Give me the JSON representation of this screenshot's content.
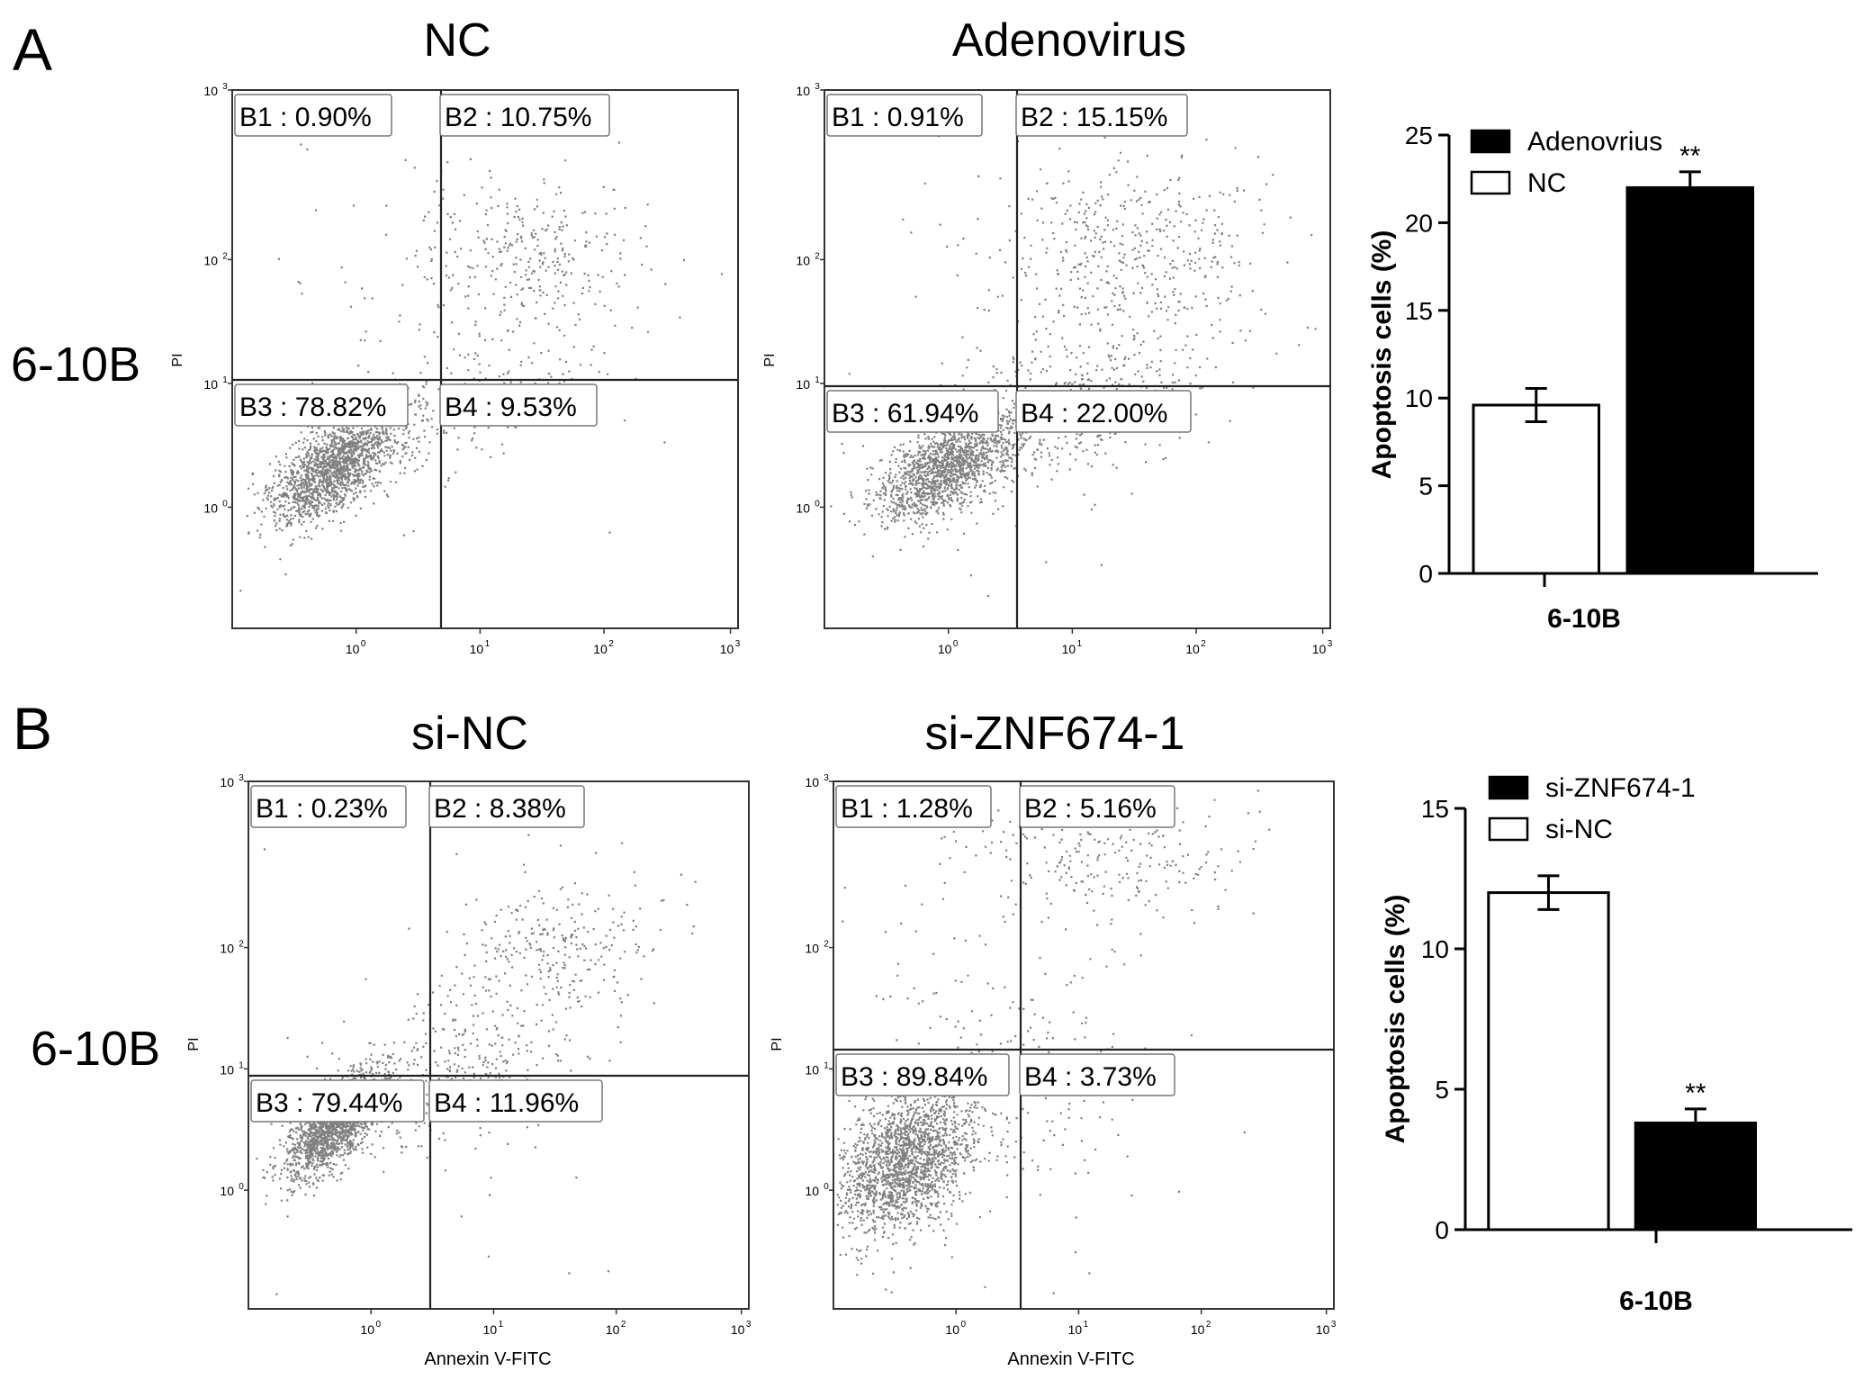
{
  "panels": [
    {
      "label": "A",
      "row_label": "6-10B",
      "flow_plots": [
        {
          "title": "NC",
          "ylabel": "PI",
          "xlabel": "",
          "quadrants": {
            "B1": "B1 : 0.90%",
            "B2": "B2 : 10.75%",
            "B3": "B3 : 78.82%",
            "B4": "B4 : 9.53%"
          }
        },
        {
          "title": "Adenovirus",
          "ylabel": "PI",
          "xlabel": "",
          "quadrants": {
            "B1": "B1 : 0.91%",
            "B2": "B2 : 15.15%",
            "B3": "B3 : 61.94%",
            "B4": "B4 : 22.00%"
          }
        }
      ]
    },
    {
      "label": "B",
      "row_label": "6-10B",
      "flow_plots": [
        {
          "title": "si-NC",
          "ylabel": "PI",
          "xlabel": "Annexin V-FITC",
          "quadrants": {
            "B1": "B1 : 0.23%",
            "B2": "B2 : 8.38%",
            "B3": "B3 : 79.44%",
            "B4": "B4 : 11.96%"
          }
        },
        {
          "title": "si-ZNF674-1",
          "ylabel": "PI",
          "xlabel": "Annexin V-FITC",
          "quadrants": {
            "B1": "B1 : 1.28%",
            "B2": "B2 : 5.16%",
            "B3": "B3 : 89.84%",
            "B4": "B4 : 3.73%"
          }
        }
      ]
    }
  ],
  "flow_axis": {
    "ticks": [
      {
        "base": "10",
        "exp": "0"
      },
      {
        "base": "10",
        "exp": "1"
      },
      {
        "base": "10",
        "exp": "2"
      },
      {
        "base": "10",
        "exp": "3"
      }
    ]
  },
  "colors": {
    "dots": "#555555",
    "bar_black": "#000000",
    "bar_white": "#ffffff"
  },
  "chart_data": [
    {
      "type": "bar",
      "panel": "A",
      "categories": [
        "6-10B"
      ],
      "series": [
        {
          "name": "NC",
          "values": [
            9.6
          ],
          "error": [
            0.95
          ],
          "color": "#ffffff",
          "significance": ""
        },
        {
          "name": "Adenovrius",
          "values": [
            22.0
          ],
          "error": [
            0.9
          ],
          "color": "#000000",
          "significance": "**"
        }
      ],
      "legend": [
        "Adenovrius",
        "NC"
      ],
      "legend_position": "top-left",
      "ylabel": "Apoptosis cells (%)",
      "xlabel": "6-10B",
      "ylim": [
        0,
        25
      ],
      "yticks": [
        0,
        5,
        10,
        15,
        20,
        25
      ],
      "grid": false
    },
    {
      "type": "bar",
      "panel": "B",
      "categories": [
        "6-10B"
      ],
      "series": [
        {
          "name": "si-NC",
          "values": [
            12.0
          ],
          "error": [
            0.6
          ],
          "color": "#ffffff",
          "significance": ""
        },
        {
          "name": "si-ZNF674-1",
          "values": [
            3.8
          ],
          "error": [
            0.5
          ],
          "color": "#000000",
          "significance": "**"
        }
      ],
      "legend": [
        "si-ZNF674-1",
        "si-NC"
      ],
      "legend_position": "top-left",
      "ylabel": "Apoptosis cells (%)",
      "xlabel": "6-10B",
      "ylim": [
        0,
        15
      ],
      "yticks": [
        0,
        5,
        10,
        15
      ],
      "grid": false
    }
  ]
}
